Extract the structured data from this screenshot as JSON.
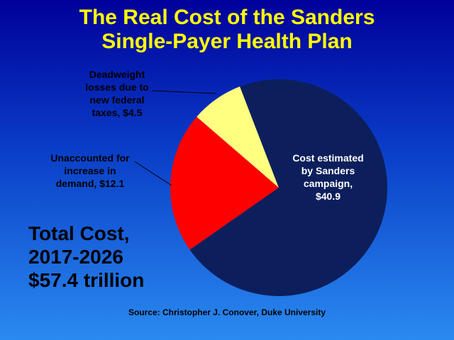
{
  "chart_data": {
    "type": "pie",
    "title": "The Real Cost of the Sanders Single-Payer Health Plan",
    "values": [
      40.9,
      12.1,
      4.5
    ],
    "value_labels": [
      "Cost estimated by Sanders campaign, $40.9",
      "Unaccounted for increase in demand, $12.1",
      "Deadweight losses due to new federal taxes, $4.5"
    ],
    "colors": [
      "#0c1f5c",
      "#ff0000",
      "#ffff80"
    ],
    "annotation": [
      "Total Cost,",
      "2017-2026",
      "$57.4 trillion"
    ],
    "source": "Source: Christopher J. Conover, Duke University"
  }
}
